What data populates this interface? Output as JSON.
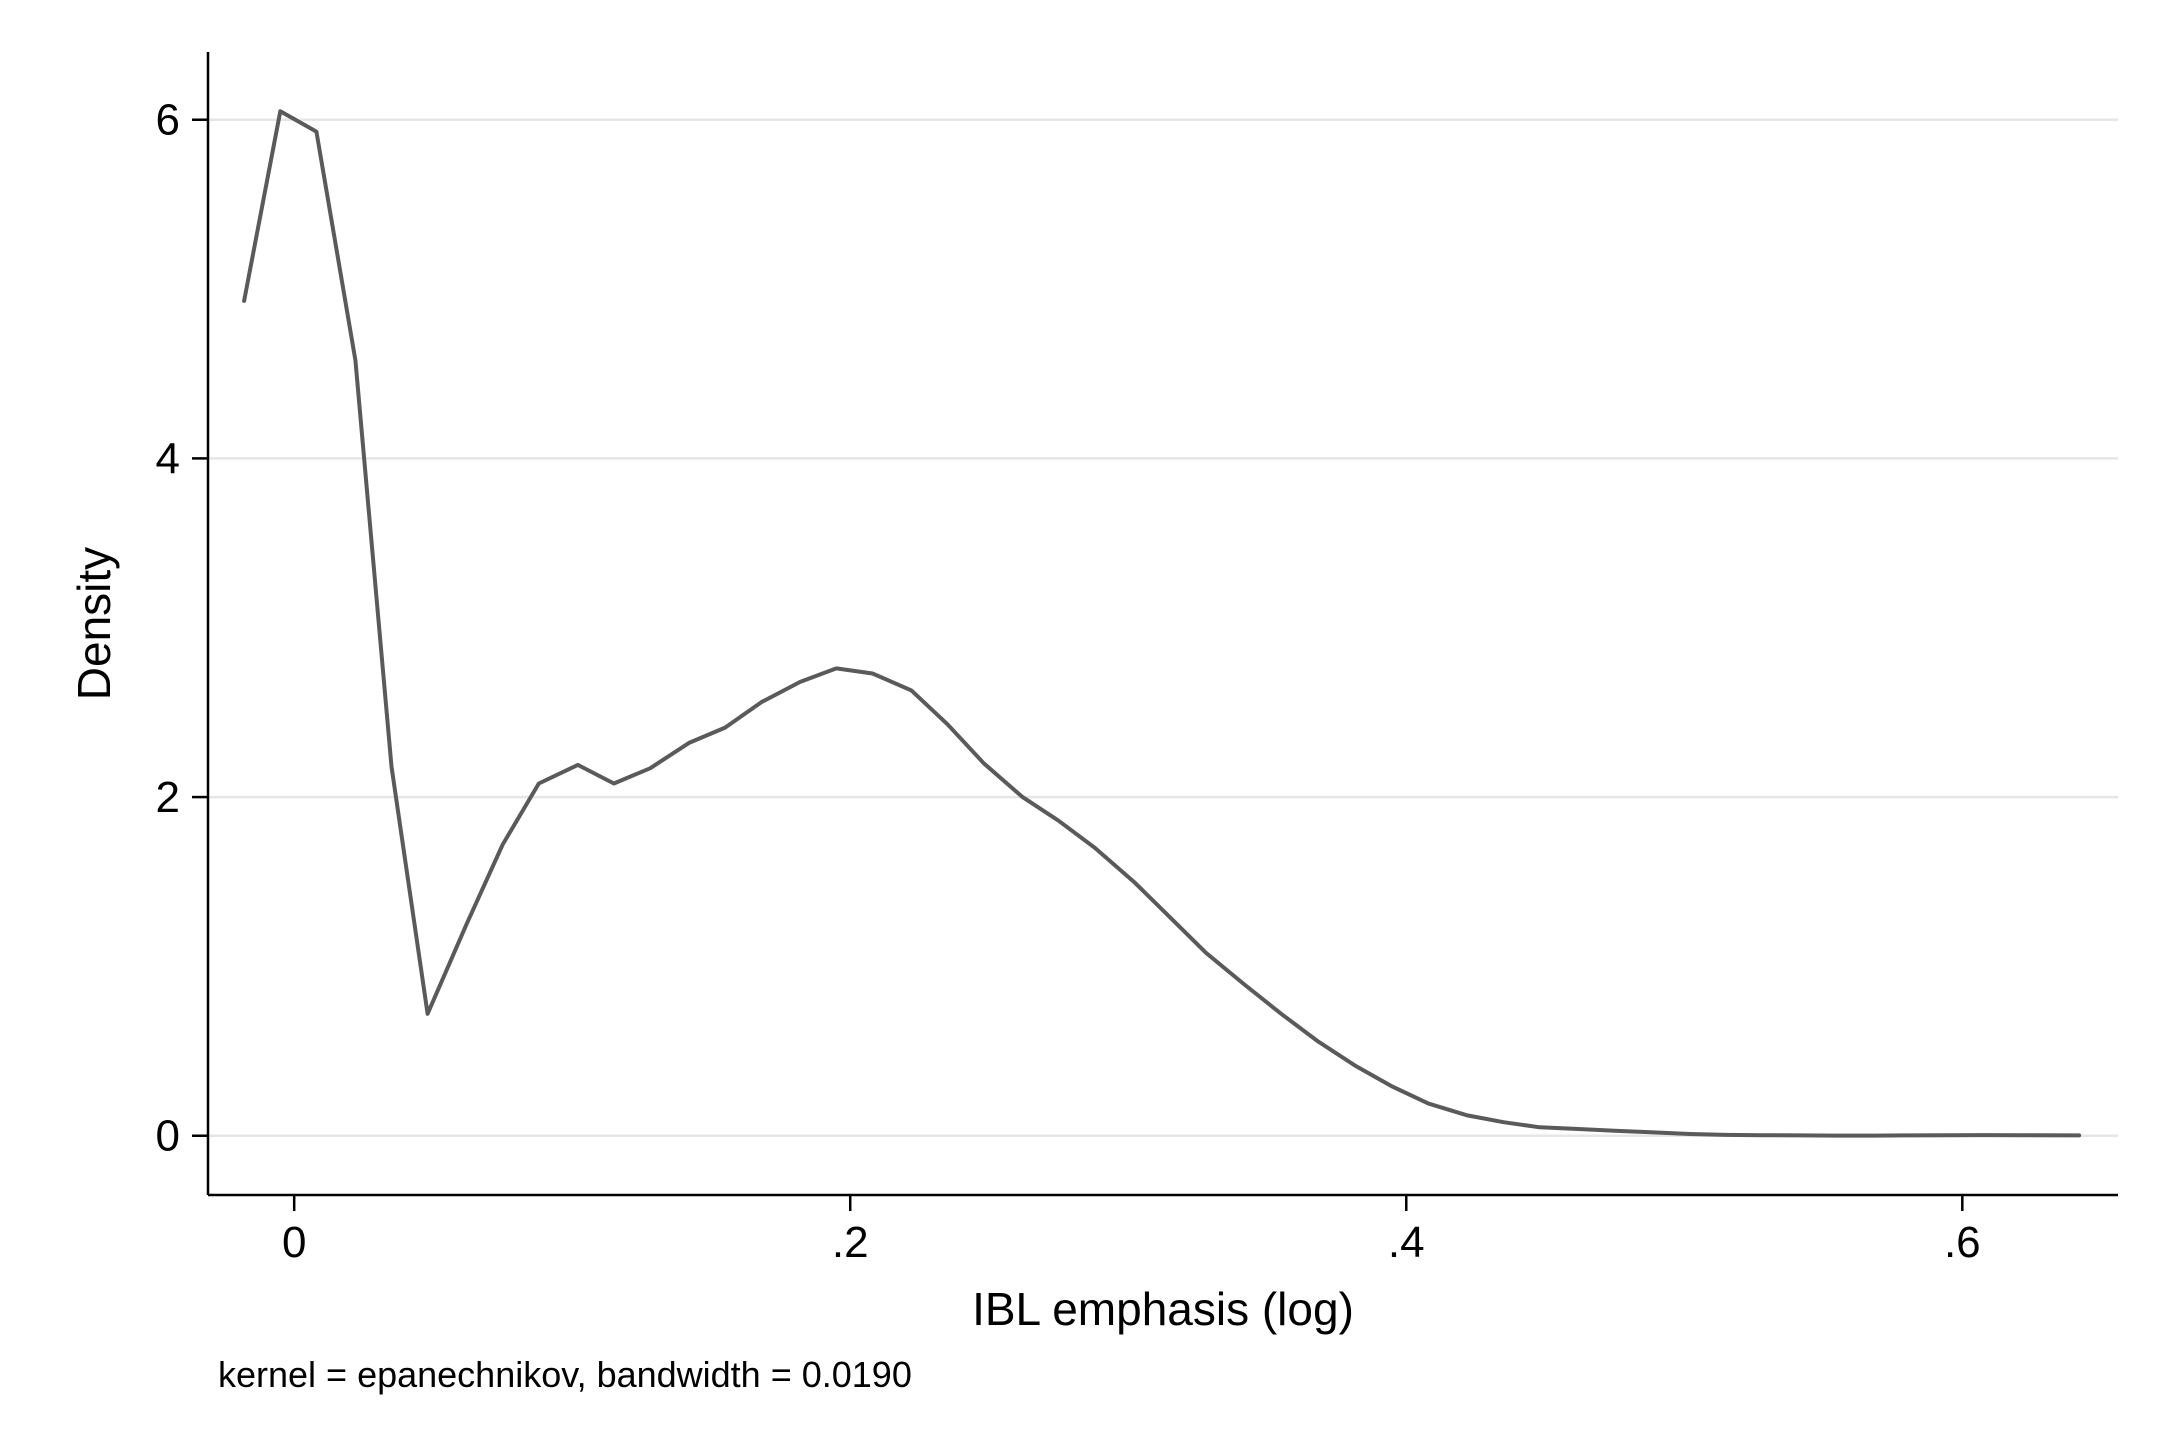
{
  "chart_data": {
    "type": "line",
    "title": "",
    "xlabel": "IBL emphasis (log)",
    "ylabel": "Density",
    "note": "kernel = epanechnikov, bandwidth = 0.0190",
    "xlim": [
      -0.031,
      0.656
    ],
    "ylim": [
      -0.35,
      6.4
    ],
    "x_ticks": [
      0,
      0.2,
      0.4,
      0.6
    ],
    "x_tick_labels": [
      "0",
      ".2",
      ".4",
      ".6"
    ],
    "y_ticks": [
      0,
      2,
      4,
      6
    ],
    "y_tick_labels": [
      "0",
      "2",
      "4",
      "6"
    ],
    "grid": "horizontal",
    "legend": "none",
    "line_color": "#5a5a5a",
    "grid_color": "#e6e6e6",
    "series": [
      {
        "x": [
          -0.018,
          -0.005,
          0.008,
          0.022,
          0.035,
          0.048,
          0.062,
          0.075,
          0.088,
          0.102,
          0.115,
          0.128,
          0.142,
          0.155,
          0.168,
          0.182,
          0.195,
          0.208,
          0.222,
          0.235,
          0.248,
          0.262,
          0.275,
          0.288,
          0.302,
          0.315,
          0.328,
          0.342,
          0.355,
          0.368,
          0.382,
          0.395,
          0.408,
          0.422,
          0.435,
          0.448,
          0.462,
          0.475,
          0.488,
          0.502,
          0.515,
          0.528,
          0.542,
          0.555,
          0.568,
          0.582,
          0.595,
          0.608,
          0.622,
          0.642
        ],
        "y": [
          4.93,
          6.05,
          5.93,
          4.58,
          2.18,
          0.72,
          1.25,
          1.72,
          2.08,
          2.19,
          2.08,
          2.17,
          2.32,
          2.41,
          2.56,
          2.68,
          2.76,
          2.73,
          2.63,
          2.43,
          2.2,
          2.0,
          1.86,
          1.7,
          1.5,
          1.29,
          1.08,
          0.89,
          0.72,
          0.56,
          0.41,
          0.29,
          0.19,
          0.12,
          0.08,
          0.05,
          0.04,
          0.03,
          0.02,
          0.01,
          0.005,
          0.003,
          0.002,
          0.001,
          0.001,
          0.002,
          0.003,
          0.004,
          0.003,
          0.002
        ]
      }
    ]
  }
}
